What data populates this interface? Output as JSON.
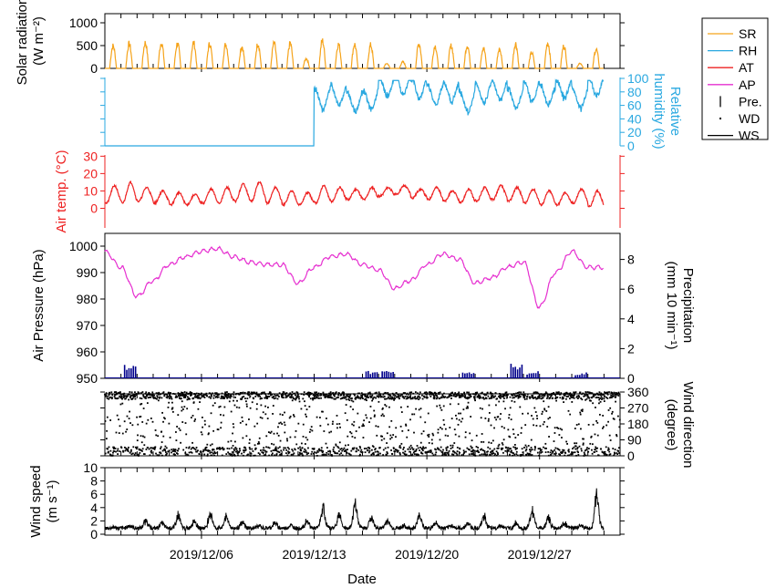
{
  "chart_data": {
    "type": "line",
    "x_axis": {
      "label": "Date",
      "start": "2019-11-30",
      "end": "2020-01-01",
      "ticks": [
        "2019/12/06",
        "2019/12/13",
        "2019/12/20",
        "2019/12/27"
      ]
    },
    "legend": {
      "placement": "top-right",
      "entries": [
        {
          "label": "SR",
          "color": "#f5a31a",
          "marker": "line"
        },
        {
          "label": "RH",
          "color": "#29a8e0",
          "marker": "line"
        },
        {
          "label": "AT",
          "color": "#ee2222",
          "marker": "line"
        },
        {
          "label": "AP",
          "color": "#e62fd0",
          "marker": "line"
        },
        {
          "label": "Pre.",
          "color": "#000000",
          "marker": "bar"
        },
        {
          "label": "WD",
          "color": "#000000",
          "marker": "dot"
        },
        {
          "label": "WS",
          "color": "#000000",
          "marker": "line"
        }
      ]
    },
    "panels": [
      {
        "key": "SR",
        "ylabel": [
          "Solar radiation",
          "(W m⁻²)"
        ],
        "ylabel_color": "#000000",
        "axis_side": "left",
        "ylim": [
          0,
          1200
        ],
        "yticks": [
          0,
          500,
          1000
        ],
        "series_color": "#f5a31a",
        "daily_peak_values": [
          560,
          610,
          640,
          640,
          620,
          640,
          610,
          600,
          550,
          620,
          620,
          620,
          240,
          690,
          600,
          600,
          580,
          120,
          160,
          620,
          560,
          560,
          580,
          510,
          470,
          620,
          390,
          640,
          560,
          130,
          480
        ]
      },
      {
        "key": "RH",
        "ylabel": [
          "Relative",
          "humidity (%)"
        ],
        "ylabel_color": "#29a8e0",
        "axis_side": "right",
        "ylim": [
          0,
          100
        ],
        "yticks": [
          0,
          20,
          40,
          60,
          80,
          100
        ],
        "series_color": "#29a8e0",
        "note_values_before_2019_12_13": 0,
        "daily_mean_values": [
          0,
          0,
          0,
          0,
          0,
          0,
          0,
          0,
          0,
          0,
          0,
          0,
          0,
          70,
          75,
          65,
          68,
          88,
          90,
          85,
          75,
          80,
          65,
          78,
          82,
          70,
          80,
          75,
          85,
          70,
          88
        ]
      },
      {
        "key": "AT",
        "ylabel": [
          "Air temp. (°C)"
        ],
        "ylabel_color": "#ee2222",
        "axis_side": "left",
        "ylim": [
          -5,
          30
        ],
        "yticks": [
          0,
          10,
          20,
          30
        ],
        "series_color": "#ee2222",
        "daily_max_values": [
          13,
          15,
          12,
          10,
          9,
          8,
          11,
          12,
          14,
          15,
          12,
          10,
          9,
          13,
          12,
          11,
          12,
          12,
          13,
          11,
          12,
          10,
          11,
          12,
          13,
          12,
          11,
          10,
          9,
          11,
          10
        ],
        "daily_min_values": [
          3,
          3,
          4,
          3,
          2,
          2,
          3,
          3,
          4,
          4,
          3,
          2,
          2,
          3,
          4,
          5,
          5,
          7,
          8,
          6,
          5,
          4,
          3,
          4,
          5,
          4,
          3,
          2,
          2,
          3,
          1
        ]
      },
      {
        "key": "AP",
        "ylabel": [
          "Air Pressure (hPa)"
        ],
        "ylabel_color": "#000000",
        "axis_side": "left",
        "ylim": [
          950,
          1005
        ],
        "yticks": [
          950,
          960,
          970,
          980,
          990,
          1000
        ],
        "series_color": "#e62fd0",
        "daily_values": [
          998,
          992,
          981,
          987,
          993,
          996,
          998,
          999,
          996,
          994,
          993,
          993,
          986,
          992,
          996,
          997,
          993,
          991,
          984,
          987,
          993,
          997,
          995,
          986,
          988,
          992,
          994,
          977,
          990,
          998,
          992
        ]
      },
      {
        "key": "Pre.",
        "ylabel": [
          "Precipitation",
          "(mm 10 min⁻¹)"
        ],
        "ylabel_color": "#000000",
        "axis_side": "right",
        "ylim": [
          0,
          9
        ],
        "yticks": [
          0,
          2,
          4,
          6,
          8
        ],
        "series_color": "#00008b",
        "events": [
          {
            "date": "2019-12-01",
            "value": 1
          },
          {
            "date": "2019-12-16",
            "value": 0.5
          },
          {
            "date": "2019-12-17",
            "value": 0.5
          },
          {
            "date": "2019-12-22",
            "value": 0.4
          },
          {
            "date": "2019-12-25",
            "value": 1
          },
          {
            "date": "2019-12-26",
            "value": 0.5
          },
          {
            "date": "2019-12-29",
            "value": 0.4
          }
        ]
      },
      {
        "key": "WD",
        "ylabel": [
          "Wind direction",
          "(degree)"
        ],
        "ylabel_color": "#000000",
        "axis_side": "right",
        "ylim": [
          0,
          360
        ],
        "yticks": [
          0,
          90,
          180,
          270,
          360
        ],
        "series_color": "#000000",
        "mark": "dot"
      },
      {
        "key": "WS",
        "ylabel": [
          "Wind speed",
          "(m s⁻¹)"
        ],
        "ylabel_color": "#000000",
        "axis_side": "left",
        "ylim": [
          0,
          10
        ],
        "yticks": [
          0,
          2,
          4,
          6,
          8,
          10
        ],
        "series_color": "#000000",
        "daily_peak_values": [
          1.2,
          1.5,
          2.5,
          2.0,
          3.5,
          2.5,
          4.0,
          3.5,
          2.0,
          1.5,
          2.0,
          1.5,
          2.5,
          5.0,
          3.5,
          5.5,
          3.0,
          2.5,
          1.5,
          3.5,
          2.0,
          1.5,
          2.0,
          3.5,
          1.5,
          2.0,
          4.5,
          3.0,
          2.0,
          1.5,
          7.0
        ]
      }
    ]
  }
}
